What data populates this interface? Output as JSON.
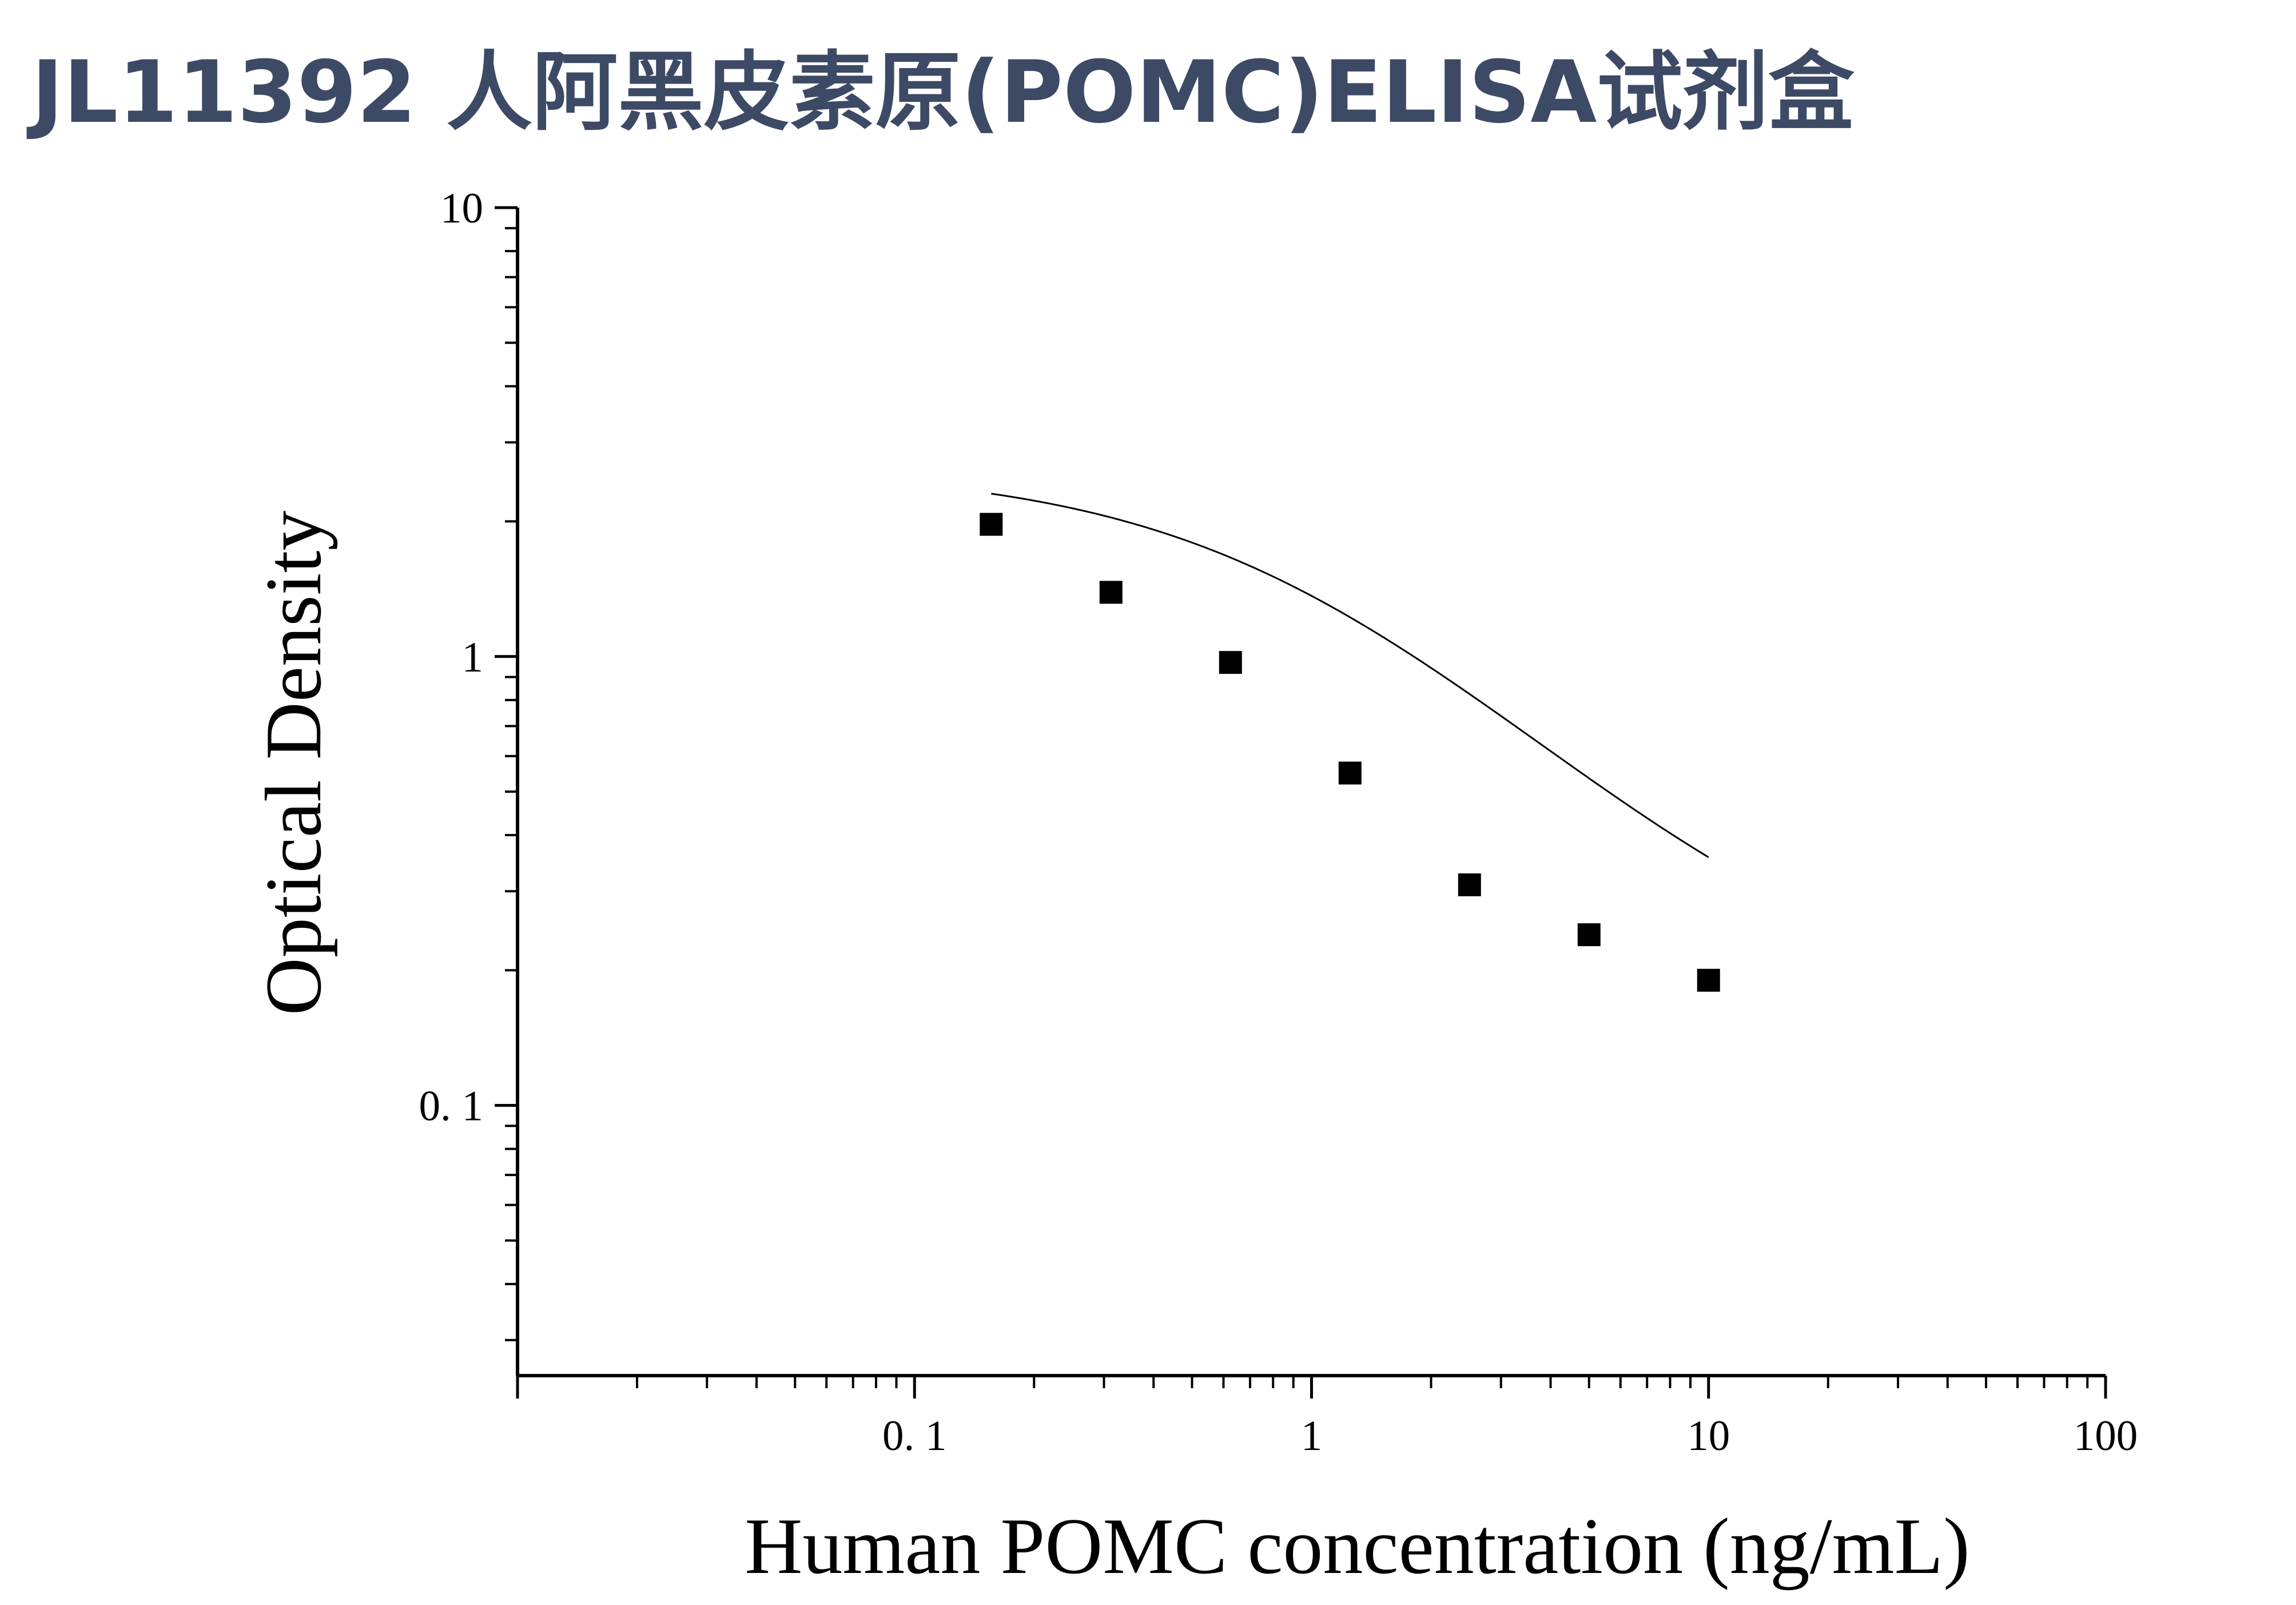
{
  "page": {
    "title": "JL11392 人阿黑皮素原(POMC)ELISA试剂盒"
  },
  "chart_data": {
    "type": "scatter",
    "xlabel": "Human POMC concentration (ng/mL)",
    "ylabel": "Optical Density",
    "x_scale": "log",
    "y_scale": "log",
    "xlim": [
      0.01,
      100
    ],
    "ylim": [
      0.025,
      10
    ],
    "x_ticks": [
      {
        "value": 0.1,
        "label": "0. 1"
      },
      {
        "value": 1,
        "label": "1"
      },
      {
        "value": 10,
        "label": "10"
      },
      {
        "value": 100,
        "label": "100"
      }
    ],
    "y_ticks": [
      {
        "value": 0.1,
        "label": "0. 1"
      },
      {
        "value": 1,
        "label": "1"
      },
      {
        "value": 10,
        "label": "10"
      }
    ],
    "grid": false,
    "legend": "none",
    "colors": {
      "points": "#000000",
      "curve": "#000000",
      "axis": "#000000",
      "title": "#3d4a66"
    },
    "series": [
      {
        "marker": "square",
        "x": [
          0.156,
          0.3125,
          0.625,
          1.25,
          2.5,
          5,
          10
        ],
        "y": [
          1.97,
          1.39,
          0.97,
          0.55,
          0.31,
          0.24,
          0.19
        ]
      }
    ],
    "fit_curve": {
      "model": "4PL",
      "A": 2.64,
      "D": 0.155,
      "C": 0.95,
      "B": 1.03,
      "x_range": [
        0.156,
        10
      ]
    }
  }
}
